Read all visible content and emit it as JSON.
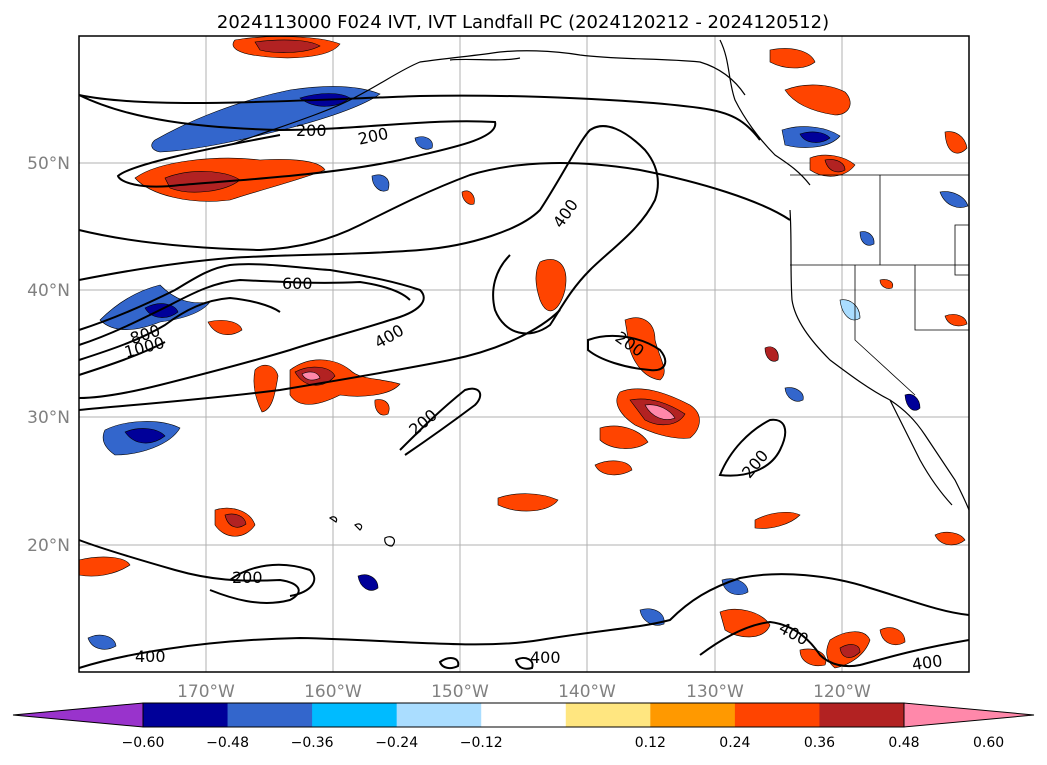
{
  "title": "2024113000 F024 IVT, IVT Landfall PC (2024120212 - 2024120512)",
  "map": {
    "lon_range": [
      -180,
      -110
    ],
    "lat_range": [
      10,
      60
    ],
    "lon_ticks": [
      "170°W",
      "160°W",
      "150°W",
      "140°W",
      "130°W",
      "120°W"
    ],
    "lat_ticks": [
      "20°N",
      "30°N",
      "40°N",
      "50°N"
    ],
    "gridlines": true
  },
  "contour_labels": [
    {
      "text": "200"
    },
    {
      "text": "200"
    },
    {
      "text": "400"
    },
    {
      "text": "600"
    },
    {
      "text": "800"
    },
    {
      "text": "1000"
    },
    {
      "text": "400"
    },
    {
      "text": "200"
    },
    {
      "text": "200"
    },
    {
      "text": "200"
    },
    {
      "text": "200"
    },
    {
      "text": "400"
    },
    {
      "text": "400"
    },
    {
      "text": "400"
    },
    {
      "text": "400"
    }
  ],
  "colorbar": {
    "tick_labels": [
      "−0.60",
      "−0.48",
      "−0.36",
      "−0.24",
      "−0.12",
      "0.12",
      "0.24",
      "0.36",
      "0.48",
      "0.60"
    ],
    "colors": [
      "#9933cc",
      "#000099",
      "#3366cc",
      "#00bbff",
      "#aaddff",
      "#ffffff",
      "#ffe680",
      "#ff9900",
      "#ff4400",
      "#b22222",
      "#ff88aa"
    ],
    "extend": "both"
  }
}
